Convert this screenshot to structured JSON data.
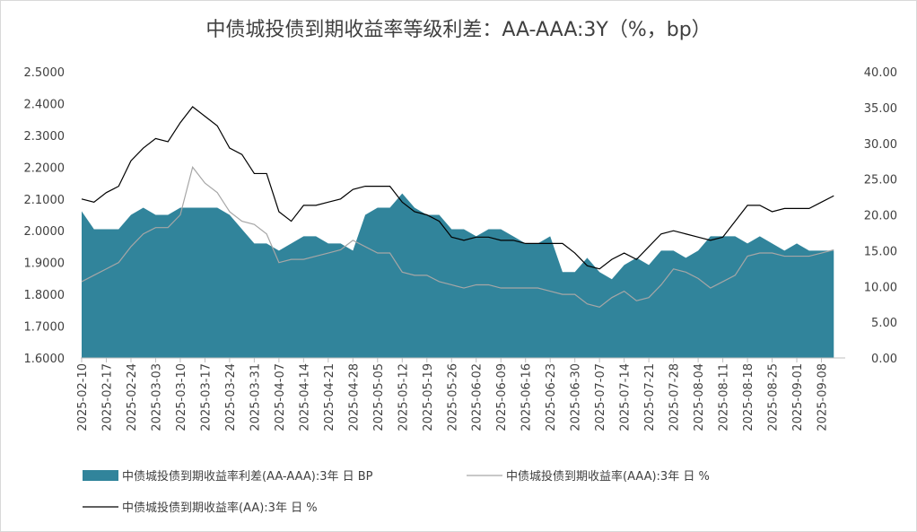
{
  "chart_data": {
    "type": "area-line",
    "title": "中债城投债到期收益率等级利差：AA-AAA:3Y（%，bp）",
    "categories": [
      "2025-02-10",
      null,
      "2025-02-17",
      null,
      "2025-02-24",
      null,
      "2025-03-03",
      null,
      "2025-03-10",
      null,
      "2025-03-17",
      null,
      "2025-03-24",
      null,
      "2025-03-31",
      null,
      "2025-04-07",
      null,
      "2025-04-14",
      null,
      "2025-04-21",
      null,
      "2025-04-28",
      null,
      "2025-05-05",
      null,
      "2025-05-12",
      null,
      "2025-05-19",
      null,
      "2025-05-26",
      null,
      "2025-06-02",
      null,
      "2025-06-09",
      null,
      "2025-06-16",
      null,
      "2025-06-23",
      null,
      "2025-06-30",
      null,
      "2025-07-07",
      null,
      "2025-07-14",
      null,
      "2025-07-21",
      null,
      "2025-07-28",
      null,
      "2025-08-04",
      null,
      "2025-08-11",
      null,
      "2025-08-18",
      null,
      "2025-08-25",
      null,
      "2025-09-01",
      null,
      "2025-09-08",
      null
    ],
    "series": [
      {
        "name": "中债城投债到期收益率利差(AA-AAA):3年 日 BP",
        "color": "#31849b",
        "kind": "area",
        "axis": "y2",
        "values": [
          20.5,
          18,
          18,
          18,
          20,
          21,
          20,
          20,
          21,
          21,
          21,
          21,
          20,
          18,
          16,
          16,
          15,
          16,
          17,
          17,
          16,
          16,
          15,
          20,
          21,
          21,
          23,
          21,
          20,
          20,
          18,
          18,
          17,
          18,
          18,
          17,
          16,
          16,
          17,
          12,
          12,
          14,
          12,
          11,
          13,
          14,
          13,
          15,
          15,
          14,
          15,
          17,
          17,
          17,
          16,
          17,
          16,
          15,
          16,
          15,
          15,
          15
        ]
      },
      {
        "name": "中债城投债到期收益率(AAA):3年 日 %",
        "color": "#a6a6a6",
        "kind": "line",
        "values": [
          1.84,
          1.86,
          1.88,
          1.9,
          1.95,
          1.99,
          2.01,
          2.01,
          2.05,
          2.2,
          2.15,
          2.12,
          2.06,
          2.03,
          2.02,
          1.99,
          1.9,
          1.91,
          1.91,
          1.92,
          1.93,
          1.94,
          1.97,
          1.95,
          1.93,
          1.93,
          1.87,
          1.86,
          1.86,
          1.84,
          1.83,
          1.82,
          1.83,
          1.83,
          1.82,
          1.82,
          1.82,
          1.82,
          1.81,
          1.8,
          1.8,
          1.77,
          1.76,
          1.79,
          1.81,
          1.78,
          1.79,
          1.83,
          1.88,
          1.87,
          1.85,
          1.82,
          1.84,
          1.86,
          1.92,
          1.93,
          1.93,
          1.92,
          1.92,
          1.92,
          1.93,
          1.94
        ]
      },
      {
        "name": "中债城投债到期收益率(AA):3年 日 %",
        "color": "#000000",
        "kind": "line",
        "values": [
          2.1,
          2.09,
          2.12,
          2.14,
          2.22,
          2.26,
          2.29,
          2.28,
          2.34,
          2.39,
          2.36,
          2.33,
          2.26,
          2.24,
          2.18,
          2.18,
          2.06,
          2.03,
          2.08,
          2.08,
          2.09,
          2.1,
          2.13,
          2.14,
          2.14,
          2.14,
          2.09,
          2.06,
          2.05,
          2.03,
          1.98,
          1.97,
          1.98,
          1.98,
          1.97,
          1.97,
          1.96,
          1.96,
          1.96,
          1.96,
          1.93,
          1.89,
          1.88,
          1.91,
          1.93,
          1.91,
          1.95,
          1.99,
          2.0,
          1.99,
          1.98,
          1.97,
          1.98,
          2.03,
          2.08,
          2.08,
          2.06,
          2.07,
          2.07,
          2.07,
          2.09,
          2.11
        ]
      }
    ],
    "ylim": [
      1.6,
      2.5
    ],
    "yticks": [
      {
        "value": 1.6,
        "label": "1.6000"
      },
      {
        "value": 1.7,
        "label": "1.7000"
      },
      {
        "value": 1.8,
        "label": "1.8000"
      },
      {
        "value": 1.9,
        "label": "1.9000"
      },
      {
        "value": 2.0,
        "label": "2.0000"
      },
      {
        "value": 2.1,
        "label": "2.1000"
      },
      {
        "value": 2.2,
        "label": "2.2000"
      },
      {
        "value": 2.3,
        "label": "2.3000"
      },
      {
        "value": 2.4,
        "label": "2.4000"
      },
      {
        "value": 2.5,
        "label": "2.5000"
      }
    ],
    "y2lim": [
      0,
      40
    ],
    "y2ticks": [
      {
        "value": 0,
        "label": "0.00"
      },
      {
        "value": 5,
        "label": "5.00"
      },
      {
        "value": 10,
        "label": "10.00"
      },
      {
        "value": 15,
        "label": "15.00"
      },
      {
        "value": 20,
        "label": "20.00"
      },
      {
        "value": 25,
        "label": "25.00"
      },
      {
        "value": 30,
        "label": "30.00"
      },
      {
        "value": 35,
        "label": "35.00"
      },
      {
        "value": 40,
        "label": "40.00"
      }
    ],
    "grid": false,
    "legend": "bottom"
  }
}
